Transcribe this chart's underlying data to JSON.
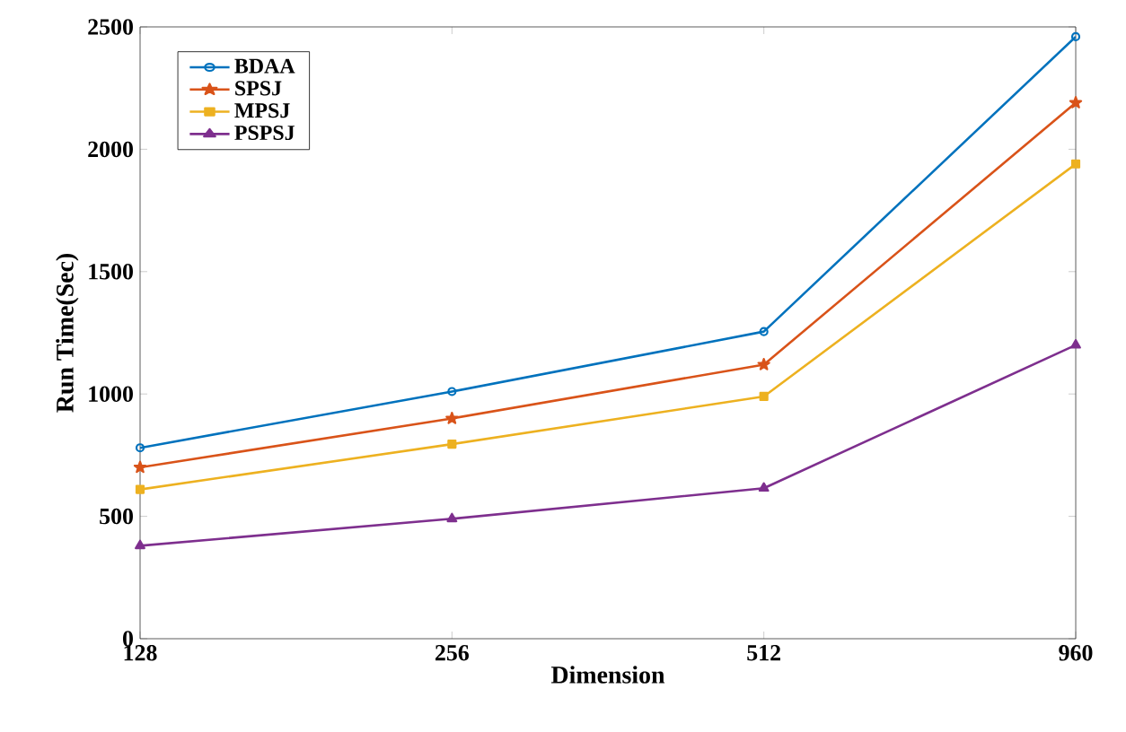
{
  "chart_data": {
    "type": "line",
    "xlabel": "Dimension",
    "ylabel": "Run Time(Sec)",
    "categories": [
      "128",
      "256",
      "512",
      "960"
    ],
    "series": [
      {
        "name": "BDAA",
        "color": "#0072bd",
        "marker": "circle",
        "values": [
          780,
          1010,
          1255,
          2460
        ]
      },
      {
        "name": "SPSJ",
        "color": "#d95319",
        "marker": "star",
        "values": [
          700,
          900,
          1120,
          2190
        ]
      },
      {
        "name": "MPSJ",
        "color": "#edb120",
        "marker": "square",
        "values": [
          610,
          795,
          990,
          1940
        ]
      },
      {
        "name": "PSPSJ",
        "color": "#7e2f8e",
        "marker": "triangle",
        "values": [
          380,
          490,
          615,
          1200
        ]
      }
    ],
    "ylim": [
      0,
      2500
    ],
    "yticks": [
      0,
      500,
      1000,
      1500,
      2000,
      2500
    ],
    "grid": false,
    "legend": "top left",
    "line_style": "solid"
  }
}
